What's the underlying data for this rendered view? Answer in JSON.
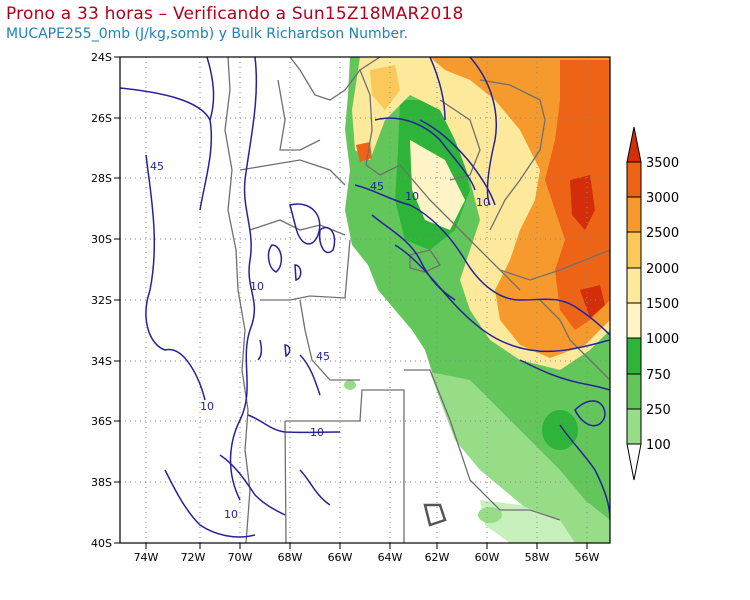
{
  "header": {
    "title": "Prono a 33 horas – Verificando a Sun15Z18MAR2018",
    "subtitle": "MUCAPE255_0mb (J/kg,somb) y Bulk Richardson Number."
  },
  "map": {
    "lat_ticks": [
      "24S",
      "26S",
      "28S",
      "30S",
      "32S",
      "34S",
      "36S",
      "38S",
      "40S"
    ],
    "lon_ticks": [
      "74W",
      "72W",
      "70W",
      "68W",
      "66W",
      "64W",
      "62W",
      "60W",
      "58W",
      "56W"
    ],
    "grid": "dotted",
    "contour_labels": [
      "45",
      "45",
      "10",
      "10",
      "10",
      "45",
      "10",
      "10",
      "10"
    ]
  },
  "colorbar": {
    "levels": [
      "3500",
      "3000",
      "2500",
      "2000",
      "1500",
      "1000",
      "750",
      "250",
      "100"
    ],
    "colors": [
      "#d42d0a",
      "#ee6417",
      "#f69a2e",
      "#fbc85a",
      "#fde99c",
      "#fff4c6",
      "#2fb43a",
      "#63c65a",
      "#97dc87",
      "#c7f0bd"
    ]
  }
}
